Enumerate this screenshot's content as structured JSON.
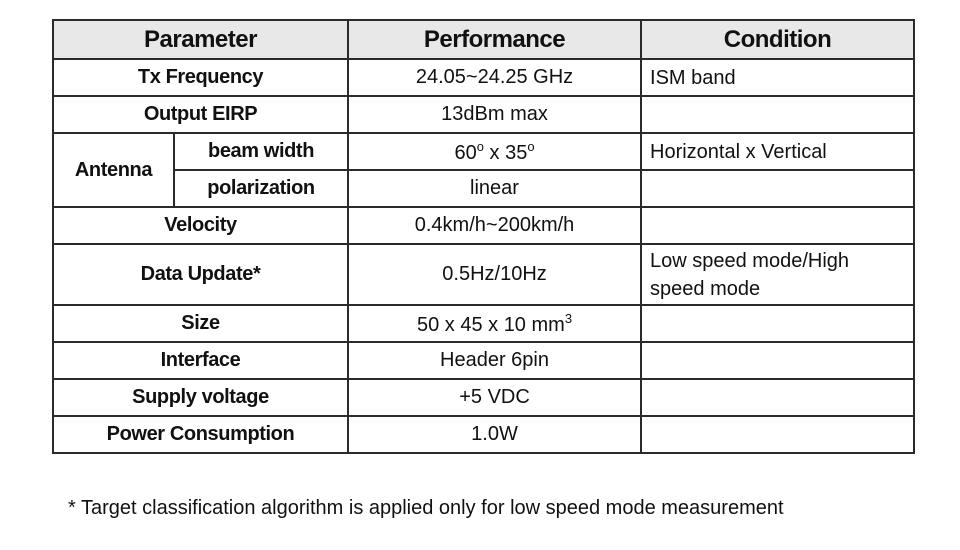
{
  "table": {
    "header": [
      "Parameter",
      "Performance",
      "Condition"
    ],
    "rows": [
      {
        "parameter": "Tx Frequency",
        "performance": [
          {
            "text": "24.05~24.25 GHz"
          }
        ],
        "condition": "ISM band"
      },
      {
        "parameter": "Output EIRP",
        "performance": [
          {
            "text": "13dBm max"
          }
        ]
      },
      {
        "parameter": "Antenna",
        "sub": [
          {
            "name": "beam width",
            "performance": [
              {
                "text": "60"
              },
              {
                "text": "o",
                "sup": true
              },
              {
                "text": " x 35"
              },
              {
                "text": "o",
                "sup": true
              }
            ],
            "condition": "Horizontal x Vertical"
          },
          {
            "name": "polarization",
            "performance": [
              {
                "text": "linear"
              }
            ]
          }
        ]
      },
      {
        "parameter": "Velocity",
        "performance": [
          {
            "text": "0.4km/h~200km/h"
          }
        ]
      },
      {
        "parameter": "Data Update*",
        "performance": [
          {
            "text": "0.5Hz/10Hz"
          }
        ],
        "condition": "Low speed mode/High speed mode"
      },
      {
        "parameter": "Size",
        "performance": [
          {
            "text": "50 x 45 x 10 mm"
          },
          {
            "text": "3",
            "sup": true
          }
        ]
      },
      {
        "parameter": "Interface",
        "performance": [
          {
            "text": "Header 6pin"
          }
        ]
      },
      {
        "parameter": "Supply voltage",
        "performance": [
          {
            "text": "+5 VDC"
          }
        ]
      },
      {
        "parameter": "Power Consumption",
        "performance": [
          {
            "text": "1.0W"
          }
        ]
      }
    ]
  },
  "footnote": "* Target classification algorithm is applied only for low speed mode measurement"
}
